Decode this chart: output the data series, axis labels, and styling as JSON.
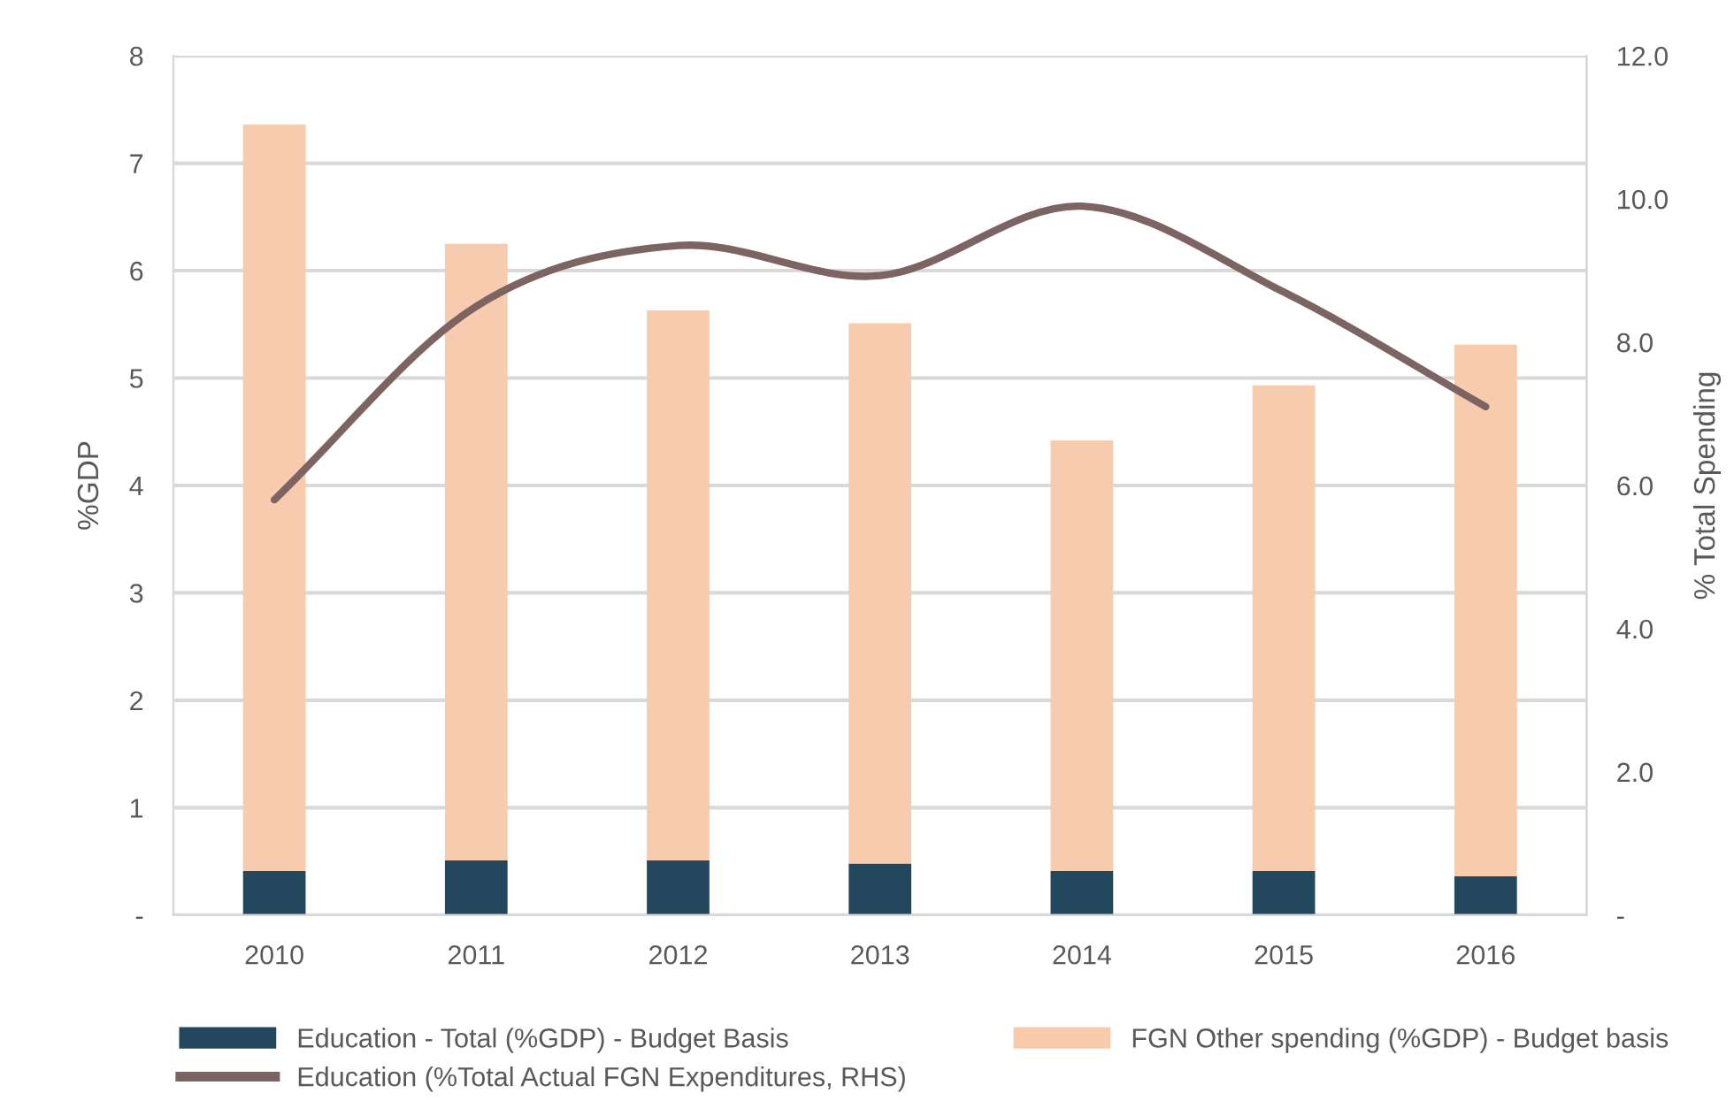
{
  "chart_data": {
    "type": "bar",
    "stacked": true,
    "categories": [
      "2010",
      "2011",
      "2012",
      "2013",
      "2014",
      "2015",
      "2016"
    ],
    "ylabel": "%GDP",
    "y2label": "% Total Spending",
    "ylim": [
      0,
      8
    ],
    "yticks": [
      {
        "value": 0,
        "label": "-"
      },
      1,
      2,
      3,
      4,
      5,
      6,
      7,
      8
    ],
    "y2lim": [
      0,
      12
    ],
    "y2ticks": [
      {
        "value": 0,
        "label": "-"
      },
      {
        "value": 2,
        "label": "2.0"
      },
      {
        "value": 4,
        "label": "4.0"
      },
      {
        "value": 6,
        "label": "6.0"
      },
      {
        "value": 8,
        "label": "8.0"
      },
      {
        "value": 10,
        "label": "10.0"
      },
      {
        "value": 12,
        "label": "12.0"
      }
    ],
    "grid": "y",
    "legend": "bottom",
    "series": [
      {
        "name": "Education - Total (%GDP) - Budget Basis",
        "color": "#23475c",
        "values": [
          0.41,
          0.51,
          0.51,
          0.48,
          0.41,
          0.41,
          0.36
        ]
      },
      {
        "name": "FGN Other spending (%GDP) - Budget basis",
        "color": "#f7cbad",
        "values": [
          6.95,
          5.74,
          5.12,
          5.03,
          4.01,
          4.52,
          4.95
        ]
      },
      {
        "name": "Education (%Total Actual FGN Expenditures, RHS)",
        "type": "line",
        "axis": "y2",
        "color": "#7b6461",
        "values": [
          5.8,
          8.5,
          9.35,
          8.93,
          9.9,
          8.7,
          7.1
        ]
      }
    ]
  }
}
